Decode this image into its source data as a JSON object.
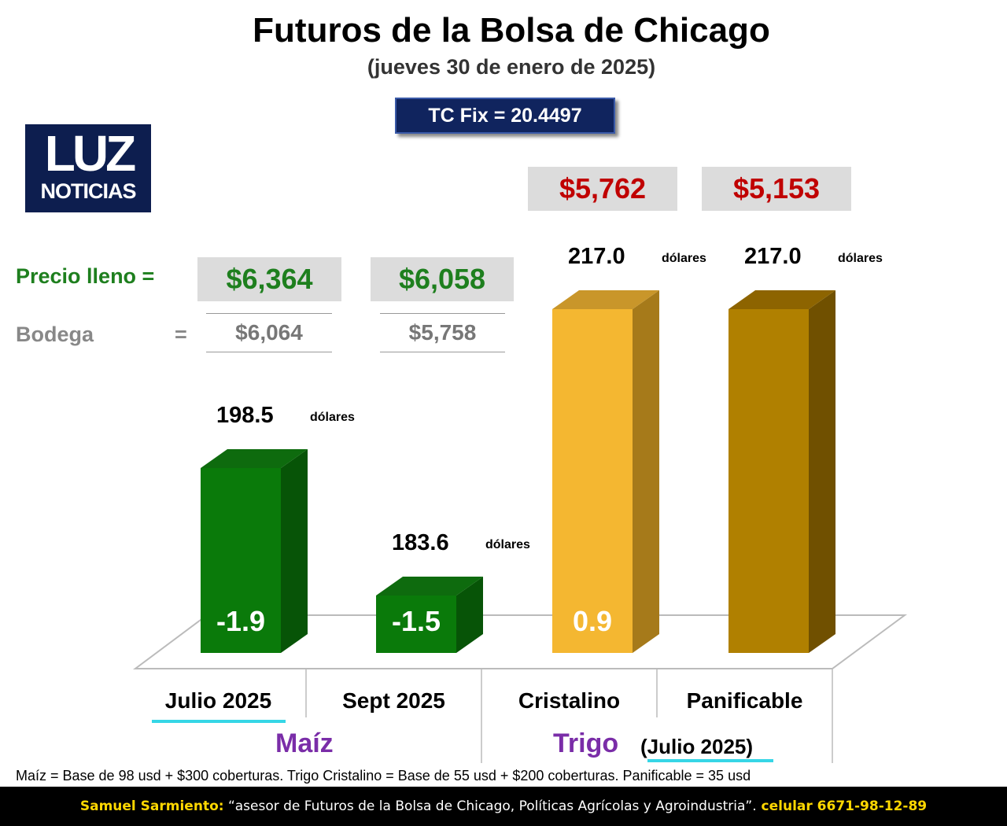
{
  "title": "Futuros de la Bolsa de Chicago",
  "subtitle": "(jueves 30 de enero de 2025)",
  "tc_fix": "TC Fix = 20.4497",
  "logo": {
    "top": "LUZ",
    "bottom": "NOTICIAS"
  },
  "price_rows": {
    "precio_lleno_label": "Precio lleno =",
    "bodega_label": "Bodega",
    "bodega_eq": "=",
    "precio_lleno": [
      "$6,364",
      "$6,058"
    ],
    "bodega": [
      "$6,064",
      "$5,758"
    ],
    "trigo_prices": [
      "$5,762",
      "$5,153"
    ]
  },
  "groups": {
    "maiz": "Maíz",
    "trigo": "Trigo",
    "trigo_note": "(Julio 2025)"
  },
  "footnote": "Maíz = Base de 98 usd + $300 coberturas. Trigo Cristalino = Base de 55 usd + $200 coberturas. Panificable = 35 usd",
  "footer": {
    "name": "Samuel Sarmiento:",
    "text": " “asesor de Futuros de la Bolsa de Chicago, Políticas Agrícolas y Agroindustria”.",
    "phone": " celular 6671-98-12-89"
  },
  "chart_data": {
    "type": "bar",
    "categories": [
      "Julio 2025",
      "Sept 2025",
      "Cristalino",
      "Panificable"
    ],
    "values": [
      198.5,
      183.6,
      217.0,
      217.0
    ],
    "value_labels": [
      "198.5",
      "183.6",
      "217.0",
      "217.0"
    ],
    "unit_label": "dólares",
    "changes": [
      "-1.9",
      "-1.5",
      "0.9",
      ""
    ],
    "colors": [
      "#0a7a0a",
      "#0a7a0a",
      "#f4b731",
      "#b08000"
    ],
    "side_colors": [
      "#075407",
      "#075407",
      "#a67a1a",
      "#705000"
    ],
    "top_colors": [
      "#0e6b0e",
      "#0e6b0e",
      "#c9962a",
      "#8d6400"
    ]
  }
}
